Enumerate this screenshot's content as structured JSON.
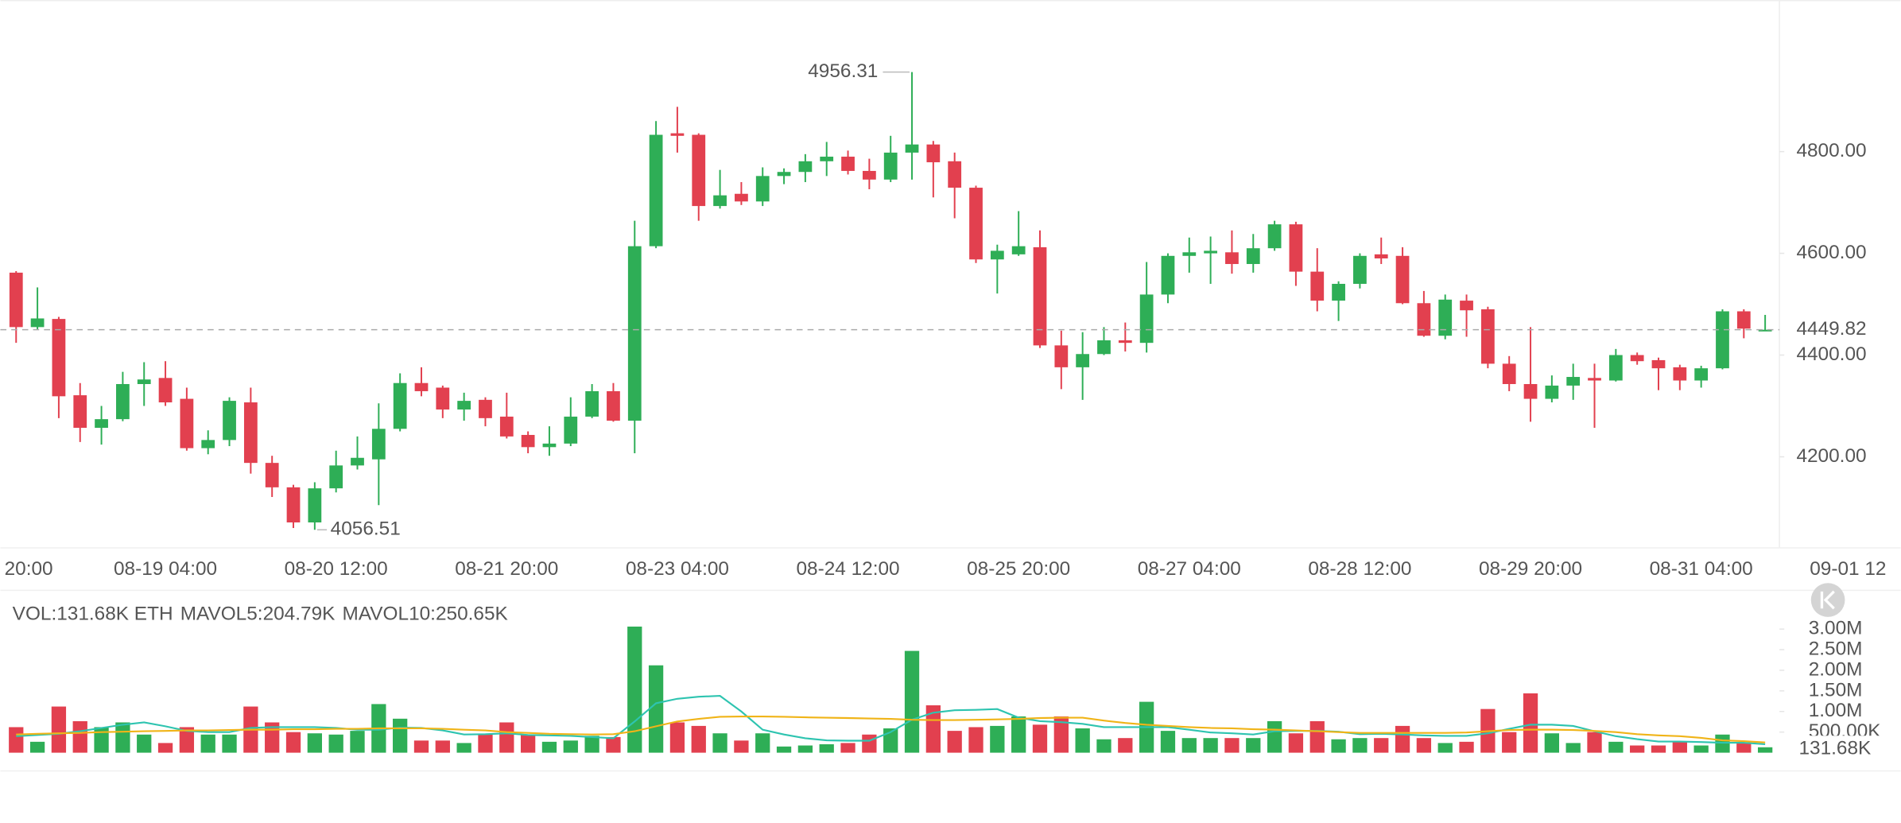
{
  "chart_data": [
    {
      "type": "candlestick",
      "x": [
        "08-18 00:00",
        "08-18 04:00",
        "08-18 08:00",
        "08-18 12:00",
        "08-18 16:00",
        "08-18 20:00",
        "08-19 00:00",
        "08-19 04:00",
        "08-19 08:00",
        "08-19 12:00",
        "08-19 16:00",
        "08-19 20:00",
        "08-20 00:00",
        "08-20 04:00",
        "08-20 08:00",
        "08-20 12:00",
        "08-20 16:00",
        "08-20 20:00",
        "08-21 00:00",
        "08-21 04:00",
        "08-21 08:00",
        "08-21 12:00",
        "08-21 16:00",
        "08-21 20:00",
        "08-22 00:00",
        "08-22 04:00",
        "08-22 08:00",
        "08-22 12:00",
        "08-22 16:00",
        "08-22 20:00",
        "08-23 00:00",
        "08-23 04:00",
        "08-23 08:00",
        "08-23 12:00",
        "08-23 16:00",
        "08-23 20:00",
        "08-24 00:00",
        "08-24 04:00",
        "08-24 08:00",
        "08-24 12:00",
        "08-24 16:00",
        "08-24 20:00",
        "08-25 00:00",
        "08-25 04:00",
        "08-25 08:00",
        "08-25 12:00",
        "08-25 16:00",
        "08-25 20:00",
        "08-26 00:00",
        "08-26 04:00",
        "08-26 08:00",
        "08-26 12:00",
        "08-26 16:00",
        "08-26 20:00",
        "08-27 00:00",
        "08-27 04:00",
        "08-27 08:00",
        "08-27 12:00",
        "08-27 16:00",
        "08-27 20:00",
        "08-28 00:00",
        "08-28 04:00",
        "08-28 08:00",
        "08-28 12:00",
        "08-28 16:00",
        "08-28 20:00",
        "08-29 00:00",
        "08-29 04:00",
        "08-29 08:00",
        "08-29 12:00",
        "08-29 16:00",
        "08-29 20:00",
        "08-30 00:00",
        "08-30 04:00",
        "08-30 08:00",
        "08-30 12:00",
        "08-30 16:00",
        "08-30 20:00",
        "08-31 00:00",
        "08-31 04:00",
        "08-31 08:00",
        "08-31 12:00",
        "08-31 16:00"
      ],
      "open": [
        4562,
        4455,
        4471,
        4321,
        4257,
        4274,
        4343,
        4355,
        4314,
        4217,
        4233,
        4307,
        4188,
        4140,
        4071,
        4138,
        4183,
        4195,
        4255,
        4345,
        4336,
        4293,
        4312,
        4279,
        4243,
        4219,
        4226,
        4279,
        4329,
        4271,
        4614,
        4836,
        4833,
        4693,
        4717,
        4702,
        4752,
        4760,
        4781,
        4790,
        4762,
        4745,
        4798,
        4814,
        4781,
        4729,
        4588,
        4598,
        4612,
        4419,
        4376,
        4402,
        4429,
        4424,
        4519,
        4595,
        4600,
        4602,
        4579,
        4610,
        4657,
        4564,
        4507,
        4540,
        4598,
        4595,
        4502,
        4438,
        4507,
        4490,
        4383,
        4343,
        4314,
        4340,
        4355,
        4350,
        4400,
        4390,
        4376,
        4350,
        4374,
        4486,
        4449
      ],
      "high": [
        4565,
        4533,
        4475,
        4345,
        4300,
        4367,
        4386,
        4388,
        4336,
        4252,
        4317,
        4336,
        4202,
        4145,
        4150,
        4212,
        4240,
        4305,
        4364,
        4376,
        4340,
        4326,
        4317,
        4326,
        4250,
        4260,
        4317,
        4343,
        4345,
        4664,
        4860,
        4888,
        4836,
        4764,
        4740,
        4769,
        4767,
        4795,
        4819,
        4802,
        4786,
        4831,
        4956.31,
        4821,
        4798,
        4733,
        4617,
        4683,
        4645,
        4448,
        4445,
        4455,
        4464,
        4583,
        4600,
        4631,
        4633,
        4645,
        4638,
        4664,
        4662,
        4610,
        4545,
        4600,
        4631,
        4612,
        4526,
        4519,
        4519,
        4495,
        4398,
        4455,
        4360,
        4383,
        4383,
        4412,
        4405,
        4395,
        4381,
        4379,
        4490,
        4490,
        4479
      ],
      "low": [
        4424,
        4450,
        4276,
        4229,
        4224,
        4270,
        4300,
        4300,
        4212,
        4205,
        4221,
        4167,
        4121,
        4060,
        4056.51,
        4130,
        4175,
        4105,
        4250,
        4319,
        4276,
        4271,
        4260,
        4236,
        4207,
        4202,
        4221,
        4276,
        4269,
        4207,
        4610,
        4798,
        4664,
        4688,
        4695,
        4693,
        4736,
        4740,
        4752,
        4755,
        4726,
        4740,
        4745,
        4710,
        4669,
        4581,
        4521,
        4595,
        4414,
        4333,
        4312,
        4400,
        4407,
        4405,
        4502,
        4562,
        4540,
        4560,
        4562,
        4605,
        4536,
        4486,
        4467,
        4531,
        4579,
        4500,
        4436,
        4431,
        4436,
        4374,
        4329,
        4269,
        4307,
        4312,
        4257,
        4348,
        4381,
        4331,
        4331,
        4336,
        4372,
        4433,
        4448
      ],
      "close": [
        4455,
        4472,
        4319,
        4257,
        4274,
        4343,
        4352,
        4307,
        4217,
        4233,
        4310,
        4188,
        4140,
        4071,
        4138,
        4183,
        4198,
        4255,
        4345,
        4329,
        4293,
        4310,
        4276,
        4240,
        4219,
        4226,
        4279,
        4329,
        4271,
        4614,
        4833,
        4831,
        4693,
        4714,
        4702,
        4752,
        4760,
        4781,
        4790,
        4762,
        4745,
        4798,
        4814,
        4779,
        4729,
        4588,
        4605,
        4614,
        4419,
        4376,
        4402,
        4429,
        4424,
        4519,
        4595,
        4602,
        4605,
        4579,
        4610,
        4657,
        4564,
        4507,
        4540,
        4595,
        4590,
        4502,
        4438,
        4509,
        4488,
        4383,
        4343,
        4314,
        4340,
        4357,
        4350,
        4400,
        4388,
        4374,
        4350,
        4374,
        4486,
        4452,
        4449.82
      ],
      "up_color": "#2eae56",
      "down_color": "#e2404f",
      "ylim": [
        4021,
        5098
      ],
      "yticks": [
        {
          "value": 4200,
          "label": "4200.00"
        },
        {
          "value": 4400,
          "label": "4400.00"
        },
        {
          "value": 4600,
          "label": "4600.00"
        },
        {
          "value": 4800,
          "label": "4800.00"
        }
      ],
      "xticks": [
        {
          "value": "08-17 20:00",
          "label": "20:00"
        },
        "08-19 04:00",
        "08-20 12:00",
        "08-21 20:00",
        "08-23 04:00",
        "08-24 12:00",
        "08-25 20:00",
        "08-27 04:00",
        "08-28 12:00",
        "08-29 20:00",
        "08-31 04:00",
        {
          "value": "09-01 12:00",
          "label": "09-01 12"
        }
      ],
      "last_price": 4449.82
    },
    {
      "type": "volume",
      "legend": [
        {
          "text": "VOL:131.68K ETH",
          "color": "#8a8a8a"
        },
        {
          "text": "MAVOL5:204.79K",
          "color": "#2ec4b0"
        },
        {
          "text": "MAVOL10:250.65K",
          "color": "#f0b418"
        }
      ],
      "values": [
        620000,
        265000,
        1120000,
        765000,
        620000,
        735000,
        440000,
        235000,
        620000,
        440000,
        440000,
        1120000,
        735000,
        500000,
        470000,
        440000,
        530000,
        1180000,
        825000,
        295000,
        295000,
        235000,
        440000,
        735000,
        440000,
        265000,
        295000,
        410000,
        380000,
        3060000,
        2120000,
        735000,
        650000,
        470000,
        295000,
        470000,
        150000,
        175000,
        205000,
        235000,
        440000,
        590000,
        2470000,
        1150000,
        530000,
        620000,
        650000,
        880000,
        680000,
        880000,
        590000,
        325000,
        355000,
        1235000,
        530000,
        355000,
        355000,
        355000,
        355000,
        765000,
        470000,
        765000,
        325000,
        355000,
        355000,
        650000,
        355000,
        235000,
        265000,
        1060000,
        500000,
        1440000,
        470000,
        235000,
        500000,
        265000,
        175000,
        175000,
        265000,
        175000,
        440000,
        235000,
        131680
      ],
      "lines": [
        {
          "color": "#2ec4b0",
          "values": [
            400000,
            430000,
            460000,
            520000,
            600000,
            680000,
            735000,
            640000,
            530000,
            500000,
            500000,
            600000,
            620000,
            620000,
            620000,
            600000,
            560000,
            560000,
            610000,
            600000,
            540000,
            440000,
            450000,
            470000,
            430000,
            420000,
            410000,
            380000,
            350000,
            760000,
            1200000,
            1310000,
            1360000,
            1380000,
            1000000,
            560000,
            440000,
            350000,
            300000,
            290000,
            290000,
            500000,
            800000,
            970000,
            1030000,
            1040000,
            1060000,
            850000,
            765000,
            740000,
            700000,
            620000,
            620000,
            620000,
            620000,
            560000,
            490000,
            470000,
            440000,
            520000,
            530000,
            530000,
            510000,
            450000,
            460000,
            440000,
            420000,
            410000,
            410000,
            470000,
            580000,
            680000,
            680000,
            650000,
            520000,
            400000,
            330000,
            270000,
            270000,
            260000,
            240000,
            240000,
            204790
          ]
        },
        {
          "color": "#f0b418",
          "values": [
            440000,
            460000,
            470000,
            480000,
            500000,
            510000,
            520000,
            530000,
            540000,
            540000,
            550000,
            560000,
            560000,
            570000,
            570000,
            580000,
            580000,
            590000,
            590000,
            590000,
            580000,
            560000,
            540000,
            500000,
            480000,
            460000,
            450000,
            440000,
            450000,
            520000,
            640000,
            760000,
            820000,
            870000,
            880000,
            880000,
            870000,
            860000,
            850000,
            840000,
            830000,
            820000,
            800000,
            790000,
            790000,
            800000,
            810000,
            820000,
            840000,
            850000,
            850000,
            780000,
            720000,
            680000,
            650000,
            620000,
            600000,
            590000,
            570000,
            560000,
            540000,
            520000,
            500000,
            480000,
            480000,
            480000,
            480000,
            480000,
            490000,
            520000,
            550000,
            560000,
            560000,
            550000,
            530000,
            500000,
            450000,
            420000,
            400000,
            360000,
            300000,
            280000,
            250650
          ]
        }
      ],
      "ylim": [
        0,
        3200000
      ],
      "yticks": [
        {
          "value": 500000,
          "label": "500.00K"
        },
        {
          "value": 1000000,
          "label": "1.00M"
        },
        {
          "value": 1500000,
          "label": "1.50M"
        },
        {
          "value": 2000000,
          "label": "2.00M"
        },
        {
          "value": 2500000,
          "label": "2.50M"
        },
        {
          "value": 3000000,
          "label": "3.00M"
        }
      ],
      "current_label": "131.68K",
      "current_color": "#f0a818"
    }
  ]
}
